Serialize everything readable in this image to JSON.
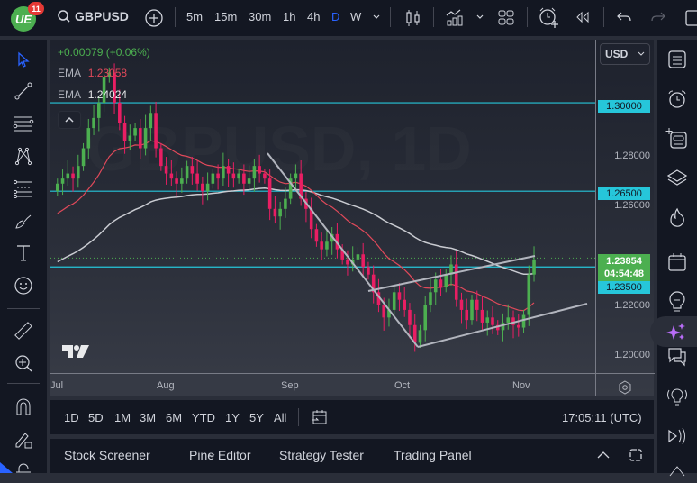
{
  "topbar": {
    "logo_text": "UE",
    "notification_count": "11",
    "symbol": "GBPUSD",
    "timeframes": [
      "5m",
      "15m",
      "30m",
      "1h",
      "4h",
      "D",
      "W"
    ],
    "active_timeframe": "D",
    "icons": [
      "search-icon",
      "add-symbol-icon",
      "chevron-down-icon",
      "candles-icon",
      "indicators-icon",
      "chevron-down-icon",
      "layout-icon",
      "alert-add-icon",
      "replay-icon",
      "undo-icon",
      "redo-icon",
      "fullscreen-icon"
    ]
  },
  "legend": {
    "change": "+0.00079 (+0.06%)",
    "ema1_label": "EMA",
    "ema1_value": "1.23058",
    "ema2_label": "EMA",
    "ema2_value": "1.24024",
    "collapse_icon": "^"
  },
  "price_scale": {
    "currency": "USD",
    "labels": [
      "1.28000",
      "1.26000",
      "1.22000",
      "1.20000"
    ],
    "tags": [
      {
        "value": "1.30000",
        "color": "#26c6da"
      },
      {
        "value": "1.26500",
        "color": "#26c6da"
      },
      {
        "value": "1.23500",
        "color": "#26c6da"
      }
    ],
    "current_price": "1.23854",
    "countdown": "04:54:48",
    "current_color": "#4caf50"
  },
  "time_scale": {
    "labels": [
      "Jul",
      "Aug",
      "Sep",
      "Oct",
      "Nov"
    ]
  },
  "bottom_bar": {
    "ranges": [
      "1D",
      "5D",
      "1M",
      "3M",
      "6M",
      "YTD",
      "1Y",
      "5Y",
      "All"
    ],
    "clock": "17:05:11 (UTC)"
  },
  "panel": {
    "tabs": [
      "Stock Screener",
      "Pine Editor",
      "Strategy Tester",
      "Trading Panel"
    ]
  },
  "colors": {
    "up": "#4caf50",
    "down": "#e91e63",
    "ema_fast": "#e0495a",
    "ema_slow": "#c9cbd1",
    "level_line": "#26c6da",
    "trendline": "#b2b5be"
  },
  "chart_data": {
    "type": "candlestick",
    "symbol": "GBPUSD",
    "interval": "1D",
    "x_labels": [
      "Jul",
      "Aug",
      "Sep",
      "Oct",
      "Nov"
    ],
    "y_ticks": [
      1.2,
      1.22,
      1.26,
      1.28
    ],
    "horizontal_levels": [
      1.3,
      1.265,
      1.235
    ],
    "current_price": 1.23854,
    "ema_values": {
      "fast": 1.23058,
      "slow": 1.24024
    },
    "ylim": [
      1.193,
      1.325
    ],
    "approx_closes": [
      1.268,
      1.27,
      1.272,
      1.27,
      1.275,
      1.282,
      1.29,
      1.294,
      1.3,
      1.31,
      1.312,
      1.3,
      1.292,
      1.285,
      1.287,
      1.29,
      1.282,
      1.29,
      1.296,
      1.282,
      1.275,
      1.272,
      1.27,
      1.268,
      1.27,
      1.275,
      1.272,
      1.268,
      1.265,
      1.268,
      1.272,
      1.27,
      1.275,
      1.272,
      1.27,
      1.272,
      1.268,
      1.27,
      1.275,
      1.272,
      1.27,
      1.258,
      1.255,
      1.258,
      1.262,
      1.27,
      1.272,
      1.262,
      1.258,
      1.25,
      1.245,
      1.242,
      1.245,
      1.248,
      1.242,
      1.238,
      1.236,
      1.238,
      1.24,
      1.235,
      1.232,
      1.225,
      1.22,
      1.215,
      1.218,
      1.225,
      1.222,
      1.218,
      1.212,
      1.205,
      1.21,
      1.22,
      1.225,
      1.23,
      1.227,
      1.232,
      1.236,
      1.222,
      1.218,
      1.214,
      1.222,
      1.218,
      1.213,
      1.215,
      1.212,
      1.21,
      1.213,
      1.215,
      1.212,
      1.211,
      1.216,
      1.232,
      1.238
    ]
  }
}
